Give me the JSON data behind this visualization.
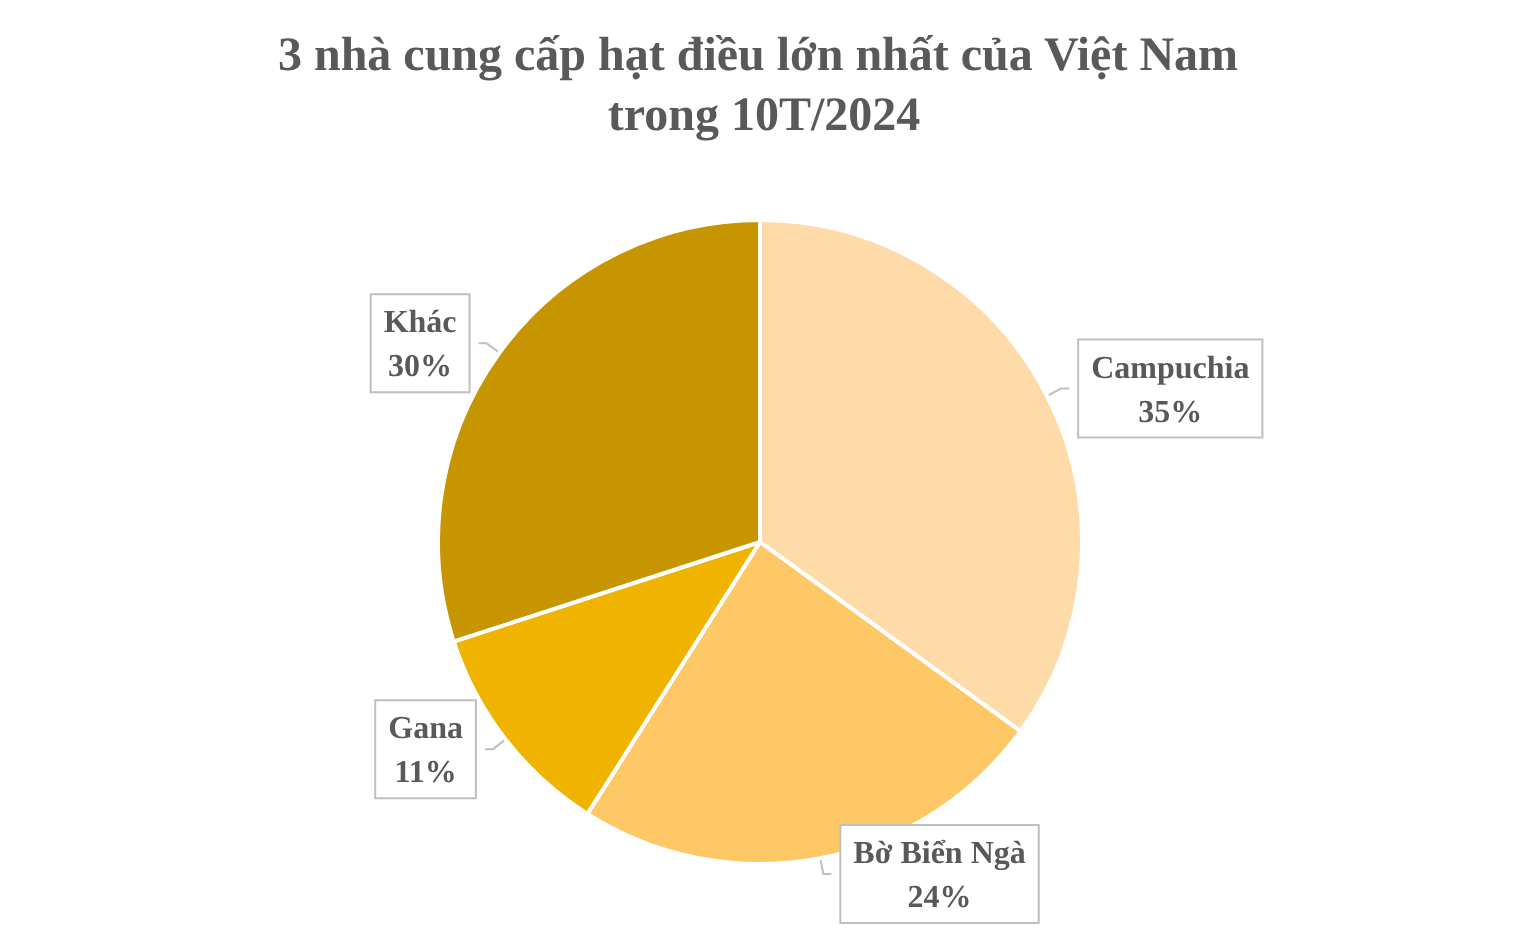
{
  "chart_data": {
    "type": "pie",
    "title": "3 nhà cung cấp hạt điều lớn nhất của Việt Nam trong 10T/2024",
    "categories": [
      "Campuchia",
      "Bờ Biển Ngà",
      "Gana",
      "Khác"
    ],
    "values": [
      35,
      24,
      11,
      30
    ],
    "value_labels": [
      "35%",
      "24%",
      "11%",
      "30%"
    ],
    "colors": [
      "#fedba8",
      "#fdc865",
      "#efb300",
      "#c69500"
    ],
    "legend": false
  }
}
